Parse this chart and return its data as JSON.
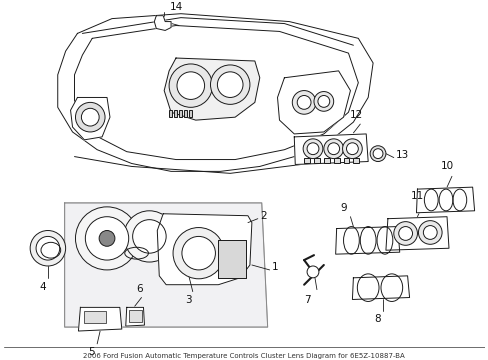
{
  "bg_color": "#ffffff",
  "line_color": "#1a1a1a",
  "label_color": "#111111",
  "font_size": 7.5,
  "lw": 0.7
}
